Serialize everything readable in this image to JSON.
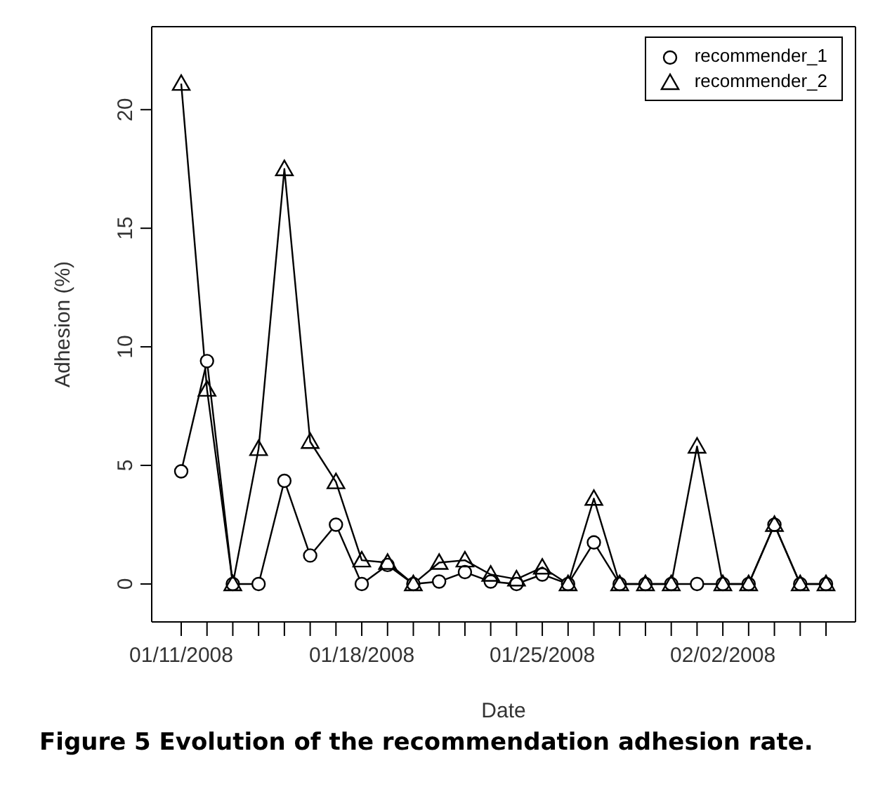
{
  "chart_data": {
    "type": "line",
    "xlabel": "Date",
    "ylabel": "Adhesion (%)",
    "annotations": [
      "Figure 5 Evolution of the recommendation adhesion rate."
    ],
    "categories": [
      "01/11/2008",
      null,
      null,
      null,
      null,
      null,
      null,
      "01/18/2008",
      null,
      null,
      null,
      null,
      null,
      null,
      "01/25/2008",
      null,
      null,
      null,
      null,
      null,
      null,
      "02/02/2008",
      null,
      null,
      null,
      null
    ],
    "series": [
      {
        "name": "recommender_1",
        "color": "#000000",
        "marker": "circle",
        "values": [
          4.75,
          9.4,
          0,
          0,
          4.35,
          1.2,
          2.5,
          0,
          0.8,
          0,
          0.1,
          0.5,
          0.1,
          0,
          0.4,
          0,
          1.75,
          0,
          0,
          0,
          0,
          0,
          0,
          2.5,
          0,
          0
        ]
      },
      {
        "name": "recommender_2",
        "color": "#000000",
        "marker": "triangle",
        "values": [
          21.1,
          8.2,
          0,
          5.7,
          17.5,
          6.0,
          4.3,
          1.0,
          0.9,
          0,
          0.9,
          1.0,
          0.4,
          0.2,
          0.7,
          0,
          3.6,
          0,
          0,
          0,
          5.8,
          0,
          0,
          2.5,
          0,
          0
        ]
      }
    ],
    "ylim": [
      -1.6,
      23.5
    ],
    "yticks": [
      0,
      5,
      10,
      15,
      20
    ],
    "legend": "top right",
    "line_style": "solid"
  }
}
